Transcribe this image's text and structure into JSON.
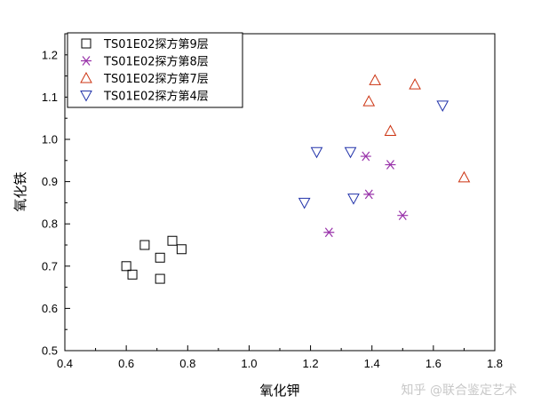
{
  "chart_data": {
    "type": "scatter",
    "xlabel": "氧化钾",
    "ylabel": "氧化铁",
    "xlim": [
      0.4,
      1.8
    ],
    "ylim": [
      0.5,
      1.25
    ],
    "x_ticks": [
      "0.4",
      "0.6",
      "0.8",
      "1.0",
      "1.2",
      "1.4",
      "1.6",
      "1.8"
    ],
    "y_ticks": [
      "0.5",
      "0.6",
      "0.7",
      "0.8",
      "0.9",
      "1.0",
      "1.1",
      "1.2"
    ],
    "grid": false,
    "legend_position": "top-left",
    "series": [
      {
        "name": "TS01E02探方第9层",
        "marker": "square",
        "color": "#000000",
        "points": [
          {
            "x": 0.6,
            "y": 0.7
          },
          {
            "x": 0.62,
            "y": 0.68
          },
          {
            "x": 0.66,
            "y": 0.75
          },
          {
            "x": 0.71,
            "y": 0.72
          },
          {
            "x": 0.71,
            "y": 0.67
          },
          {
            "x": 0.75,
            "y": 0.76
          },
          {
            "x": 0.78,
            "y": 0.74
          }
        ]
      },
      {
        "name": "TS01E02探方第8层",
        "marker": "star",
        "color": "#9933aa",
        "points": [
          {
            "x": 1.26,
            "y": 0.78
          },
          {
            "x": 1.38,
            "y": 0.96
          },
          {
            "x": 1.39,
            "y": 0.87
          },
          {
            "x": 1.46,
            "y": 0.94
          },
          {
            "x": 1.5,
            "y": 0.82
          }
        ]
      },
      {
        "name": "TS01E02探方第7层",
        "marker": "triangle-up",
        "color": "#cc3311",
        "points": [
          {
            "x": 1.39,
            "y": 1.09
          },
          {
            "x": 1.41,
            "y": 1.14
          },
          {
            "x": 1.46,
            "y": 1.02
          },
          {
            "x": 1.54,
            "y": 1.13
          },
          {
            "x": 1.7,
            "y": 0.91
          }
        ]
      },
      {
        "name": "TS01E02探方第4层",
        "marker": "triangle-down",
        "color": "#2233aa",
        "points": [
          {
            "x": 1.18,
            "y": 0.85
          },
          {
            "x": 1.22,
            "y": 0.97
          },
          {
            "x": 1.33,
            "y": 0.97
          },
          {
            "x": 1.34,
            "y": 0.86
          },
          {
            "x": 1.63,
            "y": 1.08
          }
        ]
      }
    ]
  },
  "watermark": "知乎 @联合鉴定艺术"
}
